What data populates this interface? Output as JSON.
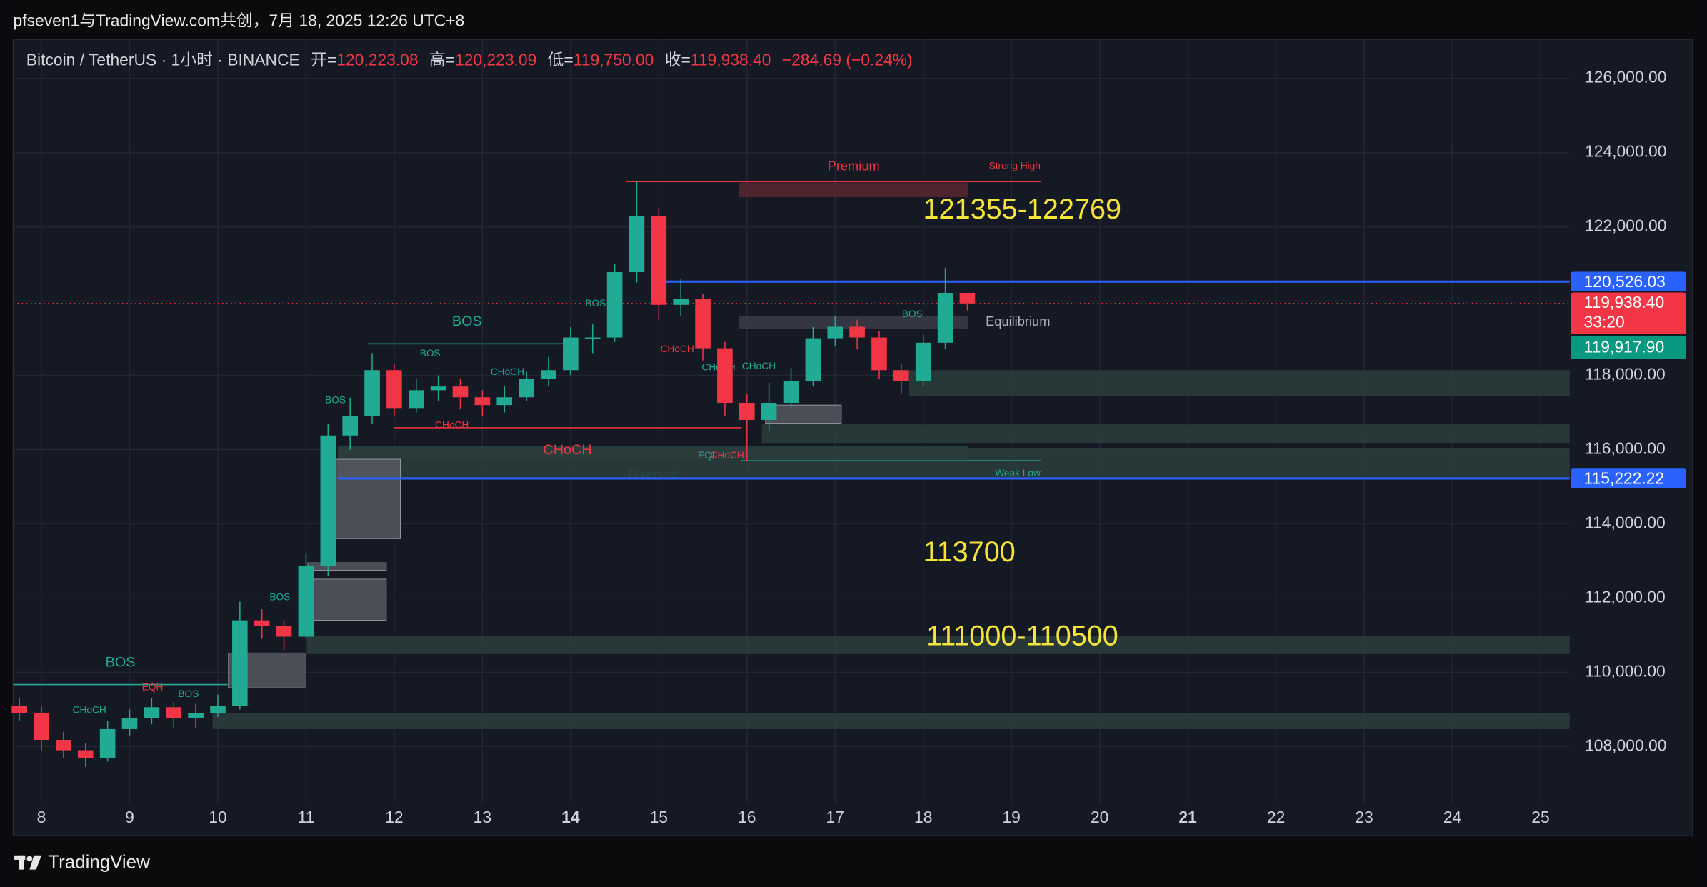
{
  "header": {
    "watermark": "pfseven1与TradingView.com共创，7月 18, 2025 12:26 UTC+8",
    "symbol": "Bitcoin / TetherUS · 1小时 · BINANCE",
    "ohlc": [
      {
        "key": "开=",
        "value": "120,223.08"
      },
      {
        "key": "高=",
        "value": "120,223.09"
      },
      {
        "key": "低=",
        "value": "119,750.00"
      },
      {
        "key": "收=",
        "value": "119,938.40"
      }
    ],
    "change": "−284.69 (−0.24%)"
  },
  "footer": {
    "brand": "TradingView"
  },
  "chart_data": {
    "type": "candlestick",
    "x": [
      7.75,
      8,
      8.25,
      8.5,
      8.75,
      9,
      9.25,
      9.5,
      9.75,
      10,
      10.25,
      10.5,
      10.75,
      11,
      11.25,
      11.5,
      11.75,
      12,
      12.25,
      12.5,
      12.75,
      13,
      13.25,
      13.5,
      13.75,
      14,
      14.25,
      14.5,
      14.75,
      15,
      15.25,
      15.5,
      15.75,
      16,
      16.25,
      16.5,
      16.75,
      17,
      17.25,
      17.5,
      17.75,
      18,
      18.25,
      18.5
    ],
    "open": [
      109100,
      108900,
      108180,
      107900,
      107700,
      108470,
      108760,
      109060,
      108760,
      108900,
      109100,
      111400,
      111250,
      110960,
      112870,
      116380,
      116900,
      118140,
      117120,
      117600,
      117700,
      117410,
      117200,
      117410,
      117900,
      118140,
      119020,
      119020,
      120780,
      122300,
      119900,
      120050,
      118730,
      117260,
      116800,
      117260,
      117850,
      119000,
      119310,
      119020,
      118140,
      117850,
      118880,
      120223.08
    ],
    "high": [
      109300,
      109100,
      108400,
      108100,
      108700,
      109000,
      109300,
      109200,
      109150,
      109400,
      111900,
      111700,
      111400,
      113200,
      116700,
      117400,
      118600,
      118300,
      117900,
      118000,
      117900,
      117600,
      117700,
      118100,
      118500,
      119300,
      119400,
      121000,
      123218,
      122500,
      120600,
      120200,
      118900,
      117500,
      117800,
      118200,
      119300,
      119600,
      119500,
      119200,
      118300,
      119100,
      120900,
      120223.09
    ],
    "low": [
      108700,
      107900,
      107700,
      107450,
      107600,
      108300,
      108600,
      108500,
      108500,
      108800,
      109000,
      110900,
      110600,
      110900,
      112600,
      116000,
      116700,
      116900,
      117000,
      117300,
      117100,
      116900,
      117000,
      117300,
      117700,
      118000,
      118600,
      118900,
      120500,
      119500,
      119600,
      118400,
      116900,
      115700,
      116500,
      117100,
      117700,
      118800,
      118700,
      117900,
      117500,
      117700,
      118700,
      119750
    ],
    "close": [
      108900,
      108180,
      107900,
      107700,
      108470,
      108760,
      109060,
      108760,
      108900,
      109100,
      111400,
      111250,
      110960,
      112870,
      116380,
      116900,
      118140,
      117120,
      117600,
      117700,
      117410,
      117200,
      117410,
      117900,
      118140,
      119020,
      119020,
      120780,
      122300,
      119900,
      120050,
      118730,
      117260,
      116800,
      117260,
      117850,
      119000,
      119310,
      119020,
      118140,
      117850,
      118880,
      120223.08,
      119938.4
    ],
    "up_color": "#22ab94",
    "down_color": "#f23645",
    "xlim": [
      7.68,
      25.33
    ],
    "xticks": [
      8,
      9,
      10,
      11,
      12,
      13,
      14,
      15,
      16,
      17,
      18,
      19,
      20,
      21,
      22,
      23,
      24,
      25
    ],
    "bold_xticks": [
      14,
      21
    ],
    "ylim": [
      106475,
      127055
    ],
    "yticks": [
      {
        "value": 108000,
        "label": "108,000.00"
      },
      {
        "value": 110000,
        "label": "110,000.00"
      },
      {
        "value": 112000,
        "label": "112,000.00"
      },
      {
        "value": 114000,
        "label": "114,000.00"
      },
      {
        "value": 116000,
        "label": "116,000.00"
      },
      {
        "value": 118000,
        "label": "118,000.00"
      },
      {
        "value": 120000,
        "label": "120,000.00"
      },
      {
        "value": 122000,
        "label": "122,000.00"
      },
      {
        "value": 124000,
        "label": "124,000.00"
      },
      {
        "value": 126000,
        "label": "126,000.00"
      }
    ],
    "grid": true,
    "zones": [
      {
        "label": "Premium",
        "x": [
          15.91,
          18.51
        ],
        "y": [
          122800,
          123190
        ],
        "color": "#5a2730"
      },
      {
        "label": "Equilibrium",
        "x": [
          15.91,
          18.51
        ],
        "y": [
          119260,
          119610
        ],
        "color": "#3a3d46"
      },
      {
        "label": "Discount",
        "x": [
          11.36,
          18.51
        ],
        "y": [
          115740,
          116090
        ],
        "color": "#27473f"
      },
      {
        "x": [
          17.84,
          25.33
        ],
        "y": [
          117440,
          118140
        ],
        "color": "#2b3d3c"
      },
      {
        "x": [
          16.17,
          25.33
        ],
        "y": [
          116180,
          116680
        ],
        "color": "#2b3d3c"
      },
      {
        "x": [
          11.36,
          25.33
        ],
        "y": [
          115230,
          116050
        ],
        "color": "#2b3d3c"
      },
      {
        "x": [
          11.01,
          25.33
        ],
        "y": [
          110490,
          110990
        ],
        "color": "#2b3d3c"
      },
      {
        "x": [
          9.94,
          25.33
        ],
        "y": [
          108470,
          108910
        ],
        "color": "#2b3d3c"
      },
      {
        "x": [
          11.23,
          12.07
        ],
        "y": [
          113600,
          115740
        ],
        "color": "#5d6068"
      },
      {
        "x": [
          11.02,
          11.91
        ],
        "y": [
          111400,
          112510
        ],
        "color": "#5d6068"
      },
      {
        "x": [
          11.02,
          11.91
        ],
        "y": [
          112750,
          112950
        ],
        "color": "#5d6068"
      },
      {
        "x": [
          10.12,
          11.0
        ],
        "y": [
          109580,
          110520
        ],
        "color": "#5d6068"
      },
      {
        "x": [
          16.21,
          17.07
        ],
        "y": [
          116710,
          117200
        ],
        "color": "#5d6068"
      }
    ],
    "levels": [
      {
        "label": "Strong High",
        "value": 123220,
        "x": [
          14.63,
          19.33
        ],
        "color": "#f23645"
      },
      {
        "label": "Weak Low",
        "value": 115700,
        "x": [
          15.93,
          19.33
        ],
        "color": "#22ab94"
      },
      {
        "label": "BOS",
        "value": 109670,
        "x": [
          7.68,
          10.11
        ],
        "color": "#22ab94"
      },
      {
        "label": "BOS",
        "value": 118850,
        "x": [
          11.7,
          13.95
        ],
        "color": "#22ab94"
      },
      {
        "label": "CHoCH",
        "value": 116590,
        "x": [
          12.0,
          15.93
        ],
        "color": "#f23645"
      }
    ],
    "small_labels": [
      {
        "text": "BOS",
        "color": "#22ab94"
      },
      {
        "text": "BOS",
        "color": "#22ab94"
      },
      {
        "text": "CHoCH",
        "color": "#22ab94"
      },
      {
        "text": "CHoCH",
        "color": "#f23645"
      },
      {
        "text": "BOS",
        "color": "#22ab94"
      },
      {
        "text": "EQH",
        "color": "#f23645"
      },
      {
        "text": "BOS",
        "color": "#22ab94"
      },
      {
        "text": "CHoCH",
        "color": "#22ab94"
      },
      {
        "text": "BOS",
        "color": "#22ab94"
      },
      {
        "text": "CHoCH",
        "color": "#f23645"
      },
      {
        "text": "CHoCH",
        "color": "#22ab94"
      },
      {
        "text": "CHoCH",
        "color": "#22ab94"
      },
      {
        "text": "EQL",
        "color": "#22ab94"
      },
      {
        "text": "CHoCH",
        "color": "#f23645"
      },
      {
        "text": "BOS",
        "color": "#22ab94"
      }
    ],
    "hlines": [
      {
        "value": 120526.03,
        "label": "120,526.03",
        "x_start": 14.99,
        "color": "#2962ff"
      },
      {
        "value": 115222.22,
        "label": "115,222.22",
        "x_start": 11.36,
        "color": "#2962ff"
      }
    ],
    "last_price": {
      "value": 119938.4,
      "label": "119,938.40",
      "countdown": "33:20",
      "color": "#f23645"
    },
    "bid": {
      "value": 119917.9,
      "label": "119,917.90",
      "color": "#089981"
    },
    "annotations": [
      {
        "text": "121355-122769"
      },
      {
        "text": "113700"
      },
      {
        "text": "111000-110500"
      }
    ],
    "annotation_color": "#f5e43a"
  }
}
